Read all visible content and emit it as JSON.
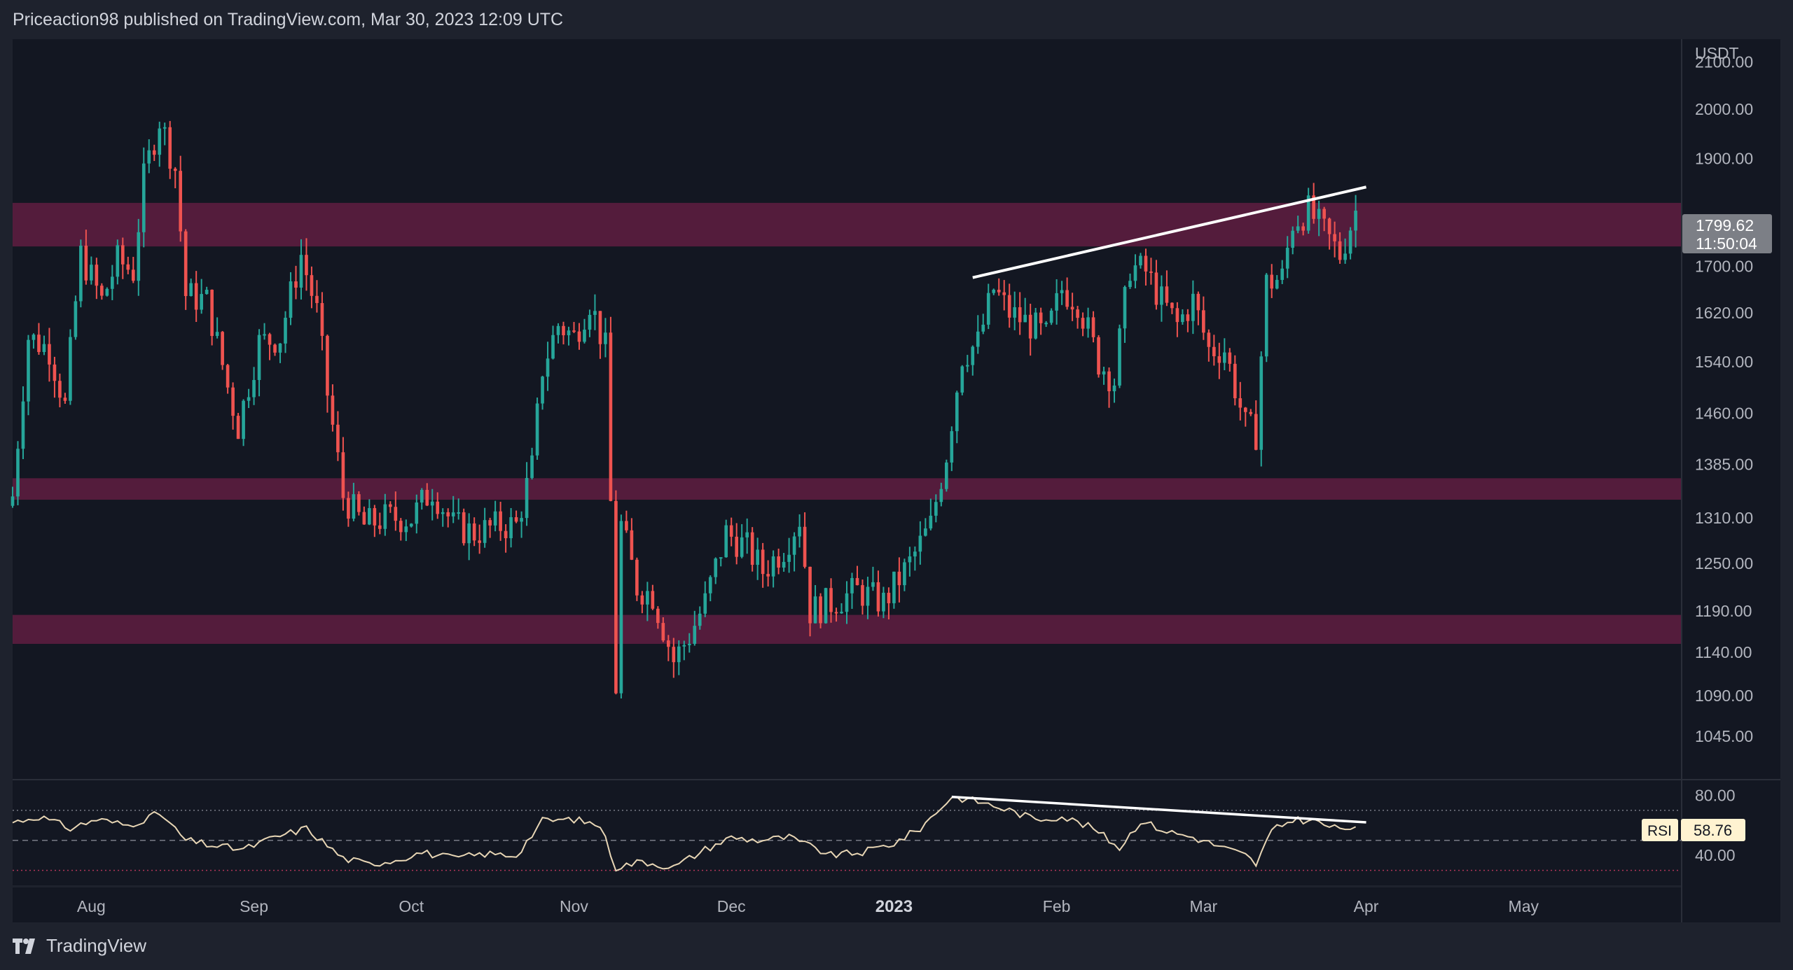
{
  "header": {
    "attribution": "Priceaction98 published on TradingView.com, Mar 30, 2023 12:09 UTC"
  },
  "footer": {
    "brand": "TradingView"
  },
  "price_axis": {
    "unit": "USDT",
    "current_price": "1799.62",
    "countdown": "11:50:04"
  },
  "rsi_panel": {
    "label": "RSI",
    "value": "58.76",
    "upper_band": 70,
    "lower_band": 30,
    "mid_line": 50
  },
  "colors": {
    "background": "#131722",
    "page": "#1e222d",
    "bull": "#26a69a",
    "bear": "#ef5350",
    "zone": "#6b1f45",
    "rsi_line": "#e8d6b5",
    "trendline": "#ffffff"
  },
  "chart_data": [
    {
      "type": "candlestick",
      "title": "",
      "ylabel": "USDT",
      "ylim": [
        1000,
        2150
      ],
      "scale": "log",
      "y_ticks": [
        "2100.00",
        "2000.00",
        "1900.00",
        "1700.00",
        "1620.00",
        "1540.00",
        "1460.00",
        "1385.00",
        "1310.00",
        "1250.00",
        "1190.00",
        "1140.00",
        "1090.00",
        "1045.00"
      ],
      "x_ticks": [
        "Aug",
        "Sep",
        "Oct",
        "Nov",
        "Dec",
        "2023",
        "Feb",
        "Mar",
        "Apr",
        "May"
      ],
      "x_tick_dates": [
        "2022-08-01",
        "2022-09-01",
        "2022-10-01",
        "2022-11-01",
        "2022-12-01",
        "2023-01-01",
        "2023-02-01",
        "2023-03-01",
        "2023-04-01",
        "2023-05-01"
      ],
      "xlim": [
        "2022-07-17",
        "2023-05-31"
      ],
      "resistance_zones": [
        {
          "low": 1735,
          "high": 1815
        },
        {
          "low": 1335,
          "high": 1365
        },
        {
          "low": 1150,
          "high": 1185
        }
      ],
      "trendline": {
        "start": {
          "date": "2023-01-16",
          "price": 1680
        },
        "end": {
          "date": "2023-04-01",
          "price": 1845
        }
      },
      "closes": [
        {
          "date": "2022-07-17",
          "close": 1340
        },
        {
          "date": "2022-07-20",
          "close": 1580
        },
        {
          "date": "2022-07-24",
          "close": 1560
        },
        {
          "date": "2022-07-27",
          "close": 1470
        },
        {
          "date": "2022-07-30",
          "close": 1720
        },
        {
          "date": "2022-08-03",
          "close": 1640
        },
        {
          "date": "2022-08-06",
          "close": 1710
        },
        {
          "date": "2022-08-09",
          "close": 1690
        },
        {
          "date": "2022-08-11",
          "close": 1860
        },
        {
          "date": "2022-08-14",
          "close": 1980
        },
        {
          "date": "2022-08-17",
          "close": 1880
        },
        {
          "date": "2022-08-19",
          "close": 1650
        },
        {
          "date": "2022-08-23",
          "close": 1640
        },
        {
          "date": "2022-08-27",
          "close": 1500
        },
        {
          "date": "2022-08-29",
          "close": 1440
        },
        {
          "date": "2022-09-02",
          "close": 1570
        },
        {
          "date": "2022-09-06",
          "close": 1580
        },
        {
          "date": "2022-09-10",
          "close": 1720
        },
        {
          "date": "2022-09-13",
          "close": 1620
        },
        {
          "date": "2022-09-15",
          "close": 1490
        },
        {
          "date": "2022-09-18",
          "close": 1340
        },
        {
          "date": "2022-09-22",
          "close": 1300
        },
        {
          "date": "2022-09-26",
          "close": 1310
        },
        {
          "date": "2022-10-01",
          "close": 1310
        },
        {
          "date": "2022-10-05",
          "close": 1350
        },
        {
          "date": "2022-10-09",
          "close": 1300
        },
        {
          "date": "2022-10-13",
          "close": 1290
        },
        {
          "date": "2022-10-18",
          "close": 1300
        },
        {
          "date": "2022-10-21",
          "close": 1300
        },
        {
          "date": "2022-10-24",
          "close": 1380
        },
        {
          "date": "2022-10-26",
          "close": 1530
        },
        {
          "date": "2022-10-29",
          "close": 1600
        },
        {
          "date": "2022-11-01",
          "close": 1580
        },
        {
          "date": "2022-11-04",
          "close": 1640
        },
        {
          "date": "2022-11-07",
          "close": 1560
        },
        {
          "date": "2022-11-09",
          "close": 1100
        },
        {
          "date": "2022-11-10",
          "close": 1300
        },
        {
          "date": "2022-11-13",
          "close": 1220
        },
        {
          "date": "2022-11-16",
          "close": 1210
        },
        {
          "date": "2022-11-20",
          "close": 1130
        },
        {
          "date": "2022-11-23",
          "close": 1160
        },
        {
          "date": "2022-11-26",
          "close": 1200
        },
        {
          "date": "2022-11-30",
          "close": 1290
        },
        {
          "date": "2022-12-04",
          "close": 1270
        },
        {
          "date": "2022-12-07",
          "close": 1240
        },
        {
          "date": "2022-12-11",
          "close": 1270
        },
        {
          "date": "2022-12-14",
          "close": 1310
        },
        {
          "date": "2022-12-16",
          "close": 1190
        },
        {
          "date": "2022-12-20",
          "close": 1200
        },
        {
          "date": "2022-12-25",
          "close": 1215
        },
        {
          "date": "2022-12-30",
          "close": 1200
        },
        {
          "date": "2023-01-04",
          "close": 1250
        },
        {
          "date": "2023-01-08",
          "close": 1300
        },
        {
          "date": "2023-01-11",
          "close": 1400
        },
        {
          "date": "2023-01-14",
          "close": 1550
        },
        {
          "date": "2023-01-17",
          "close": 1570
        },
        {
          "date": "2023-01-20",
          "close": 1660
        },
        {
          "date": "2023-01-23",
          "close": 1620
        },
        {
          "date": "2023-01-27",
          "close": 1600
        },
        {
          "date": "2023-01-30",
          "close": 1580
        },
        {
          "date": "2023-02-02",
          "close": 1660
        },
        {
          "date": "2023-02-05",
          "close": 1640
        },
        {
          "date": "2023-02-09",
          "close": 1540
        },
        {
          "date": "2023-02-12",
          "close": 1510
        },
        {
          "date": "2023-02-15",
          "close": 1700
        },
        {
          "date": "2023-02-18",
          "close": 1690
        },
        {
          "date": "2023-02-21",
          "close": 1640
        },
        {
          "date": "2023-02-24",
          "close": 1600
        },
        {
          "date": "2023-02-27",
          "close": 1640
        },
        {
          "date": "2023-03-02",
          "close": 1560
        },
        {
          "date": "2023-03-05",
          "close": 1560
        },
        {
          "date": "2023-03-09",
          "close": 1440
        },
        {
          "date": "2023-03-11",
          "close": 1430
        },
        {
          "date": "2023-03-13",
          "close": 1670
        },
        {
          "date": "2023-03-16",
          "close": 1680
        },
        {
          "date": "2023-03-18",
          "close": 1780
        },
        {
          "date": "2023-03-21",
          "close": 1800
        },
        {
          "date": "2023-03-24",
          "close": 1760
        },
        {
          "date": "2023-03-27",
          "close": 1720
        },
        {
          "date": "2023-03-30",
          "close": 1799.62
        }
      ]
    },
    {
      "type": "line",
      "title": "RSI",
      "ylim": [
        20,
        90
      ],
      "y_ticks": [
        "80.00",
        "40.00"
      ],
      "trendline": {
        "start": {
          "date": "2023-01-12",
          "value": 79
        },
        "end": {
          "date": "2023-04-01",
          "value": 62
        }
      },
      "series": [
        {
          "name": "RSI",
          "points": [
            {
              "date": "2022-07-17",
              "value": 62
            },
            {
              "date": "2022-07-22",
              "value": 66
            },
            {
              "date": "2022-07-28",
              "value": 58
            },
            {
              "date": "2022-08-02",
              "value": 64
            },
            {
              "date": "2022-08-08",
              "value": 60
            },
            {
              "date": "2022-08-14",
              "value": 68
            },
            {
              "date": "2022-08-19",
              "value": 50
            },
            {
              "date": "2022-08-25",
              "value": 46
            },
            {
              "date": "2022-08-30",
              "value": 44
            },
            {
              "date": "2022-09-05",
              "value": 52
            },
            {
              "date": "2022-09-11",
              "value": 58
            },
            {
              "date": "2022-09-18",
              "value": 38
            },
            {
              "date": "2022-09-23",
              "value": 34
            },
            {
              "date": "2022-09-28",
              "value": 37
            },
            {
              "date": "2022-10-03",
              "value": 42
            },
            {
              "date": "2022-10-09",
              "value": 38
            },
            {
              "date": "2022-10-15",
              "value": 41
            },
            {
              "date": "2022-10-21",
              "value": 40
            },
            {
              "date": "2022-10-26",
              "value": 63
            },
            {
              "date": "2022-11-01",
              "value": 64
            },
            {
              "date": "2022-11-06",
              "value": 60
            },
            {
              "date": "2022-11-09",
              "value": 32
            },
            {
              "date": "2022-11-14",
              "value": 36
            },
            {
              "date": "2022-11-20",
              "value": 32
            },
            {
              "date": "2022-11-26",
              "value": 44
            },
            {
              "date": "2022-12-01",
              "value": 52
            },
            {
              "date": "2022-12-06",
              "value": 50
            },
            {
              "date": "2022-12-12",
              "value": 52
            },
            {
              "date": "2022-12-16",
              "value": 46
            },
            {
              "date": "2022-12-20",
              "value": 40
            },
            {
              "date": "2022-12-26",
              "value": 42
            },
            {
              "date": "2023-01-01",
              "value": 48
            },
            {
              "date": "2023-01-06",
              "value": 58
            },
            {
              "date": "2023-01-12",
              "value": 79
            },
            {
              "date": "2023-01-17",
              "value": 76
            },
            {
              "date": "2023-01-23",
              "value": 70
            },
            {
              "date": "2023-01-28",
              "value": 64
            },
            {
              "date": "2023-02-02",
              "value": 66
            },
            {
              "date": "2023-02-08",
              "value": 58
            },
            {
              "date": "2023-02-13",
              "value": 45
            },
            {
              "date": "2023-02-17",
              "value": 63
            },
            {
              "date": "2023-02-22",
              "value": 56
            },
            {
              "date": "2023-02-27",
              "value": 52
            },
            {
              "date": "2023-03-04",
              "value": 46
            },
            {
              "date": "2023-03-09",
              "value": 40
            },
            {
              "date": "2023-03-11",
              "value": 34
            },
            {
              "date": "2023-03-14",
              "value": 56
            },
            {
              "date": "2023-03-18",
              "value": 64
            },
            {
              "date": "2023-03-22",
              "value": 63
            },
            {
              "date": "2023-03-26",
              "value": 58
            },
            {
              "date": "2023-03-30",
              "value": 59
            }
          ]
        }
      ]
    }
  ]
}
